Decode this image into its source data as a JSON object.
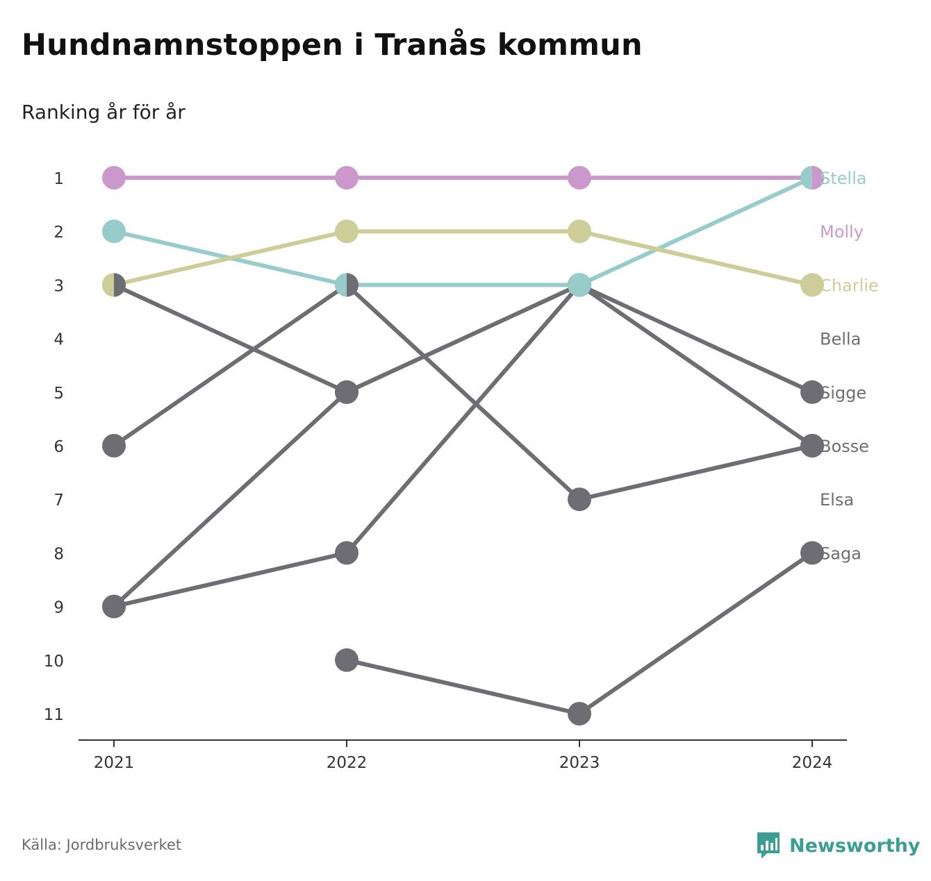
{
  "title": "Hundnamnstoppen i Tranås kommun",
  "subtitle": "Ranking år för år",
  "source": "Källa: Jordbruksverket",
  "brand": "Newsworthy",
  "colors": {
    "grey": "#6e6d73",
    "stella": "#97cccb",
    "molly": "#cb98cc",
    "charlie": "#cccd98",
    "axis": "#333333",
    "brand": "#3a9e94"
  },
  "chart_data": {
    "type": "line",
    "x": [
      "2021",
      "2022",
      "2023",
      "2024"
    ],
    "y_ticks": [
      "1",
      "2",
      "3",
      "4",
      "5",
      "6",
      "7",
      "8",
      "9",
      "10",
      "11"
    ],
    "ylim": [
      1,
      11
    ],
    "y_inverted": true,
    "grid": false,
    "series": [
      {
        "name": "Saga",
        "color": "#6e6d73",
        "values": [
          null,
          10,
          11,
          8
        ]
      },
      {
        "name": "Elsa",
        "color": "#6e6d73",
        "values": [
          9,
          8,
          3,
          null
        ]
      },
      {
        "name": "Bosse",
        "color": "#6e6d73",
        "values": [
          3,
          5,
          3,
          6
        ]
      },
      {
        "name": "Sigge",
        "color": "#6e6d73",
        "values": [
          9,
          5,
          3,
          5
        ]
      },
      {
        "name": "Bella",
        "color": "#6e6d73",
        "values": [
          6,
          3,
          7,
          6
        ]
      },
      {
        "name": "Stella",
        "color": "#97cccb",
        "values": [
          2,
          3,
          3,
          1
        ]
      },
      {
        "name": "Charlie",
        "color": "#cccd98",
        "values": [
          3,
          2,
          2,
          3
        ]
      },
      {
        "name": "Molly",
        "color": "#cb98cc",
        "values": [
          1,
          1,
          1,
          1
        ]
      }
    ],
    "end_labels": [
      {
        "name": "Stella",
        "rank": 1,
        "color": "#97cccb"
      },
      {
        "name": "Molly",
        "rank": 2,
        "color": "#cb98cc"
      },
      {
        "name": "Charlie",
        "rank": 3,
        "color": "#cccd98"
      },
      {
        "name": "Bella",
        "rank": 4,
        "color": "#6e6d73"
      },
      {
        "name": "Sigge",
        "rank": 5,
        "color": "#6e6d73"
      },
      {
        "name": "Bosse",
        "rank": 6,
        "color": "#6e6d73"
      },
      {
        "name": "Elsa",
        "rank": 7,
        "color": "#6e6d73"
      },
      {
        "name": "Saga",
        "rank": 8,
        "color": "#6e6d73"
      }
    ],
    "split_markers": [
      {
        "year_index": 0,
        "rank": 3,
        "left": "#cccd98",
        "right": "#6e6d73"
      },
      {
        "year_index": 1,
        "rank": 3,
        "left": "#97cccb",
        "right": "#6e6d73"
      },
      {
        "year_index": 3,
        "rank": 1,
        "left": "#97cccb",
        "right": "#cb98cc"
      }
    ]
  }
}
